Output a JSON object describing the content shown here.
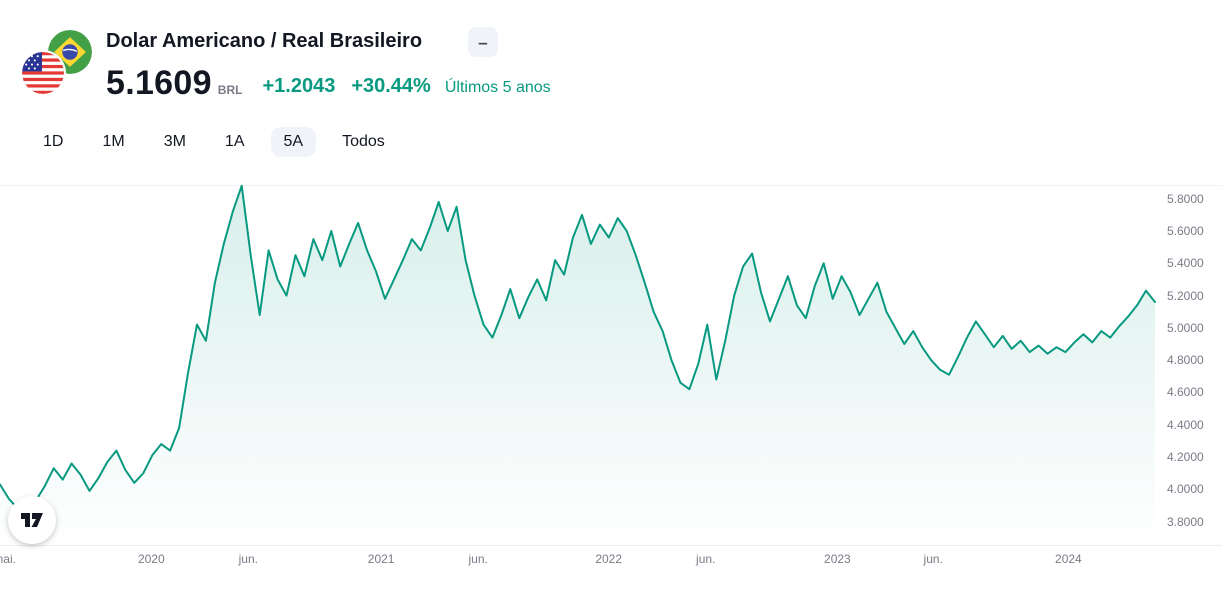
{
  "header": {
    "symbol_title": "Dolar Americano / Real Brasileiro",
    "collapse_label": "–",
    "price": "5.1609",
    "currency": "BRL",
    "change_abs": "+1.2043",
    "change_pct": "+30.44%",
    "range_label": "Últimos 5 anos"
  },
  "tabs": [
    {
      "label": "1D",
      "selected": false
    },
    {
      "label": "1M",
      "selected": false
    },
    {
      "label": "3M",
      "selected": false
    },
    {
      "label": "1A",
      "selected": false
    },
    {
      "label": "5A",
      "selected": true
    },
    {
      "label": "Todos",
      "selected": false
    }
  ],
  "icons": {
    "collapse": "minus-glyph",
    "flag_left": "us-flag",
    "flag_right": "brazil-flag",
    "logo": "tradingview-17-mark"
  },
  "colors": {
    "text": "#131722",
    "muted": "#787b86",
    "accent_green": "#089981",
    "tab_selected_bg": "#f0f3fa"
  },
  "chart_data": {
    "type": "area",
    "ylim": [
      3.655,
      5.885
    ],
    "y_ticks": [
      5.8,
      5.6,
      5.4,
      5.2,
      5.0,
      4.8,
      4.6,
      4.4,
      4.2,
      4.0,
      3.8
    ],
    "y_tick_decimals": 4,
    "x_ticks": [
      {
        "label": "mai.",
        "pos": 0.004
      },
      {
        "label": "2020",
        "pos": 0.131
      },
      {
        "label": "jun.",
        "pos": 0.215
      },
      {
        "label": "2021",
        "pos": 0.33
      },
      {
        "label": "jun.",
        "pos": 0.414
      },
      {
        "label": "2022",
        "pos": 0.527
      },
      {
        "label": "jun.",
        "pos": 0.611
      },
      {
        "label": "2023",
        "pos": 0.725
      },
      {
        "label": "jun.",
        "pos": 0.808
      },
      {
        "label": "2024",
        "pos": 0.925
      }
    ],
    "series": [
      {
        "name": "USD/BRL",
        "values": [
          4.03,
          3.94,
          3.88,
          3.8,
          3.93,
          4.02,
          4.13,
          4.06,
          4.16,
          4.09,
          3.99,
          4.07,
          4.17,
          4.24,
          4.12,
          4.04,
          4.1,
          4.21,
          4.28,
          4.24,
          4.38,
          4.72,
          5.02,
          4.92,
          5.28,
          5.52,
          5.72,
          5.88,
          5.45,
          5.08,
          5.48,
          5.3,
          5.2,
          5.45,
          5.32,
          5.55,
          5.42,
          5.6,
          5.38,
          5.52,
          5.65,
          5.48,
          5.35,
          5.18,
          5.3,
          5.42,
          5.55,
          5.48,
          5.62,
          5.78,
          5.6,
          5.75,
          5.42,
          5.2,
          5.02,
          4.94,
          5.08,
          5.24,
          5.06,
          5.19,
          5.3,
          5.17,
          5.42,
          5.33,
          5.56,
          5.7,
          5.52,
          5.64,
          5.56,
          5.68,
          5.6,
          5.45,
          5.28,
          5.1,
          4.98,
          4.8,
          4.66,
          4.62,
          4.78,
          5.02,
          4.68,
          4.92,
          5.2,
          5.38,
          5.46,
          5.22,
          5.04,
          5.18,
          5.32,
          5.14,
          5.06,
          5.26,
          5.4,
          5.18,
          5.32,
          5.22,
          5.08,
          5.18,
          5.28,
          5.1,
          5.0,
          4.9,
          4.98,
          4.88,
          4.8,
          4.74,
          4.71,
          4.82,
          4.94,
          5.04,
          4.96,
          4.88,
          4.95,
          4.87,
          4.92,
          4.85,
          4.89,
          4.84,
          4.88,
          4.85,
          4.91,
          4.96,
          4.91,
          4.98,
          4.94,
          5.01,
          5.07,
          5.14,
          5.23,
          5.16
        ]
      }
    ],
    "line_color": "#089981",
    "fill_opacity_top": 0.16,
    "grid": false,
    "legend": false,
    "y_axis_position": "right"
  }
}
